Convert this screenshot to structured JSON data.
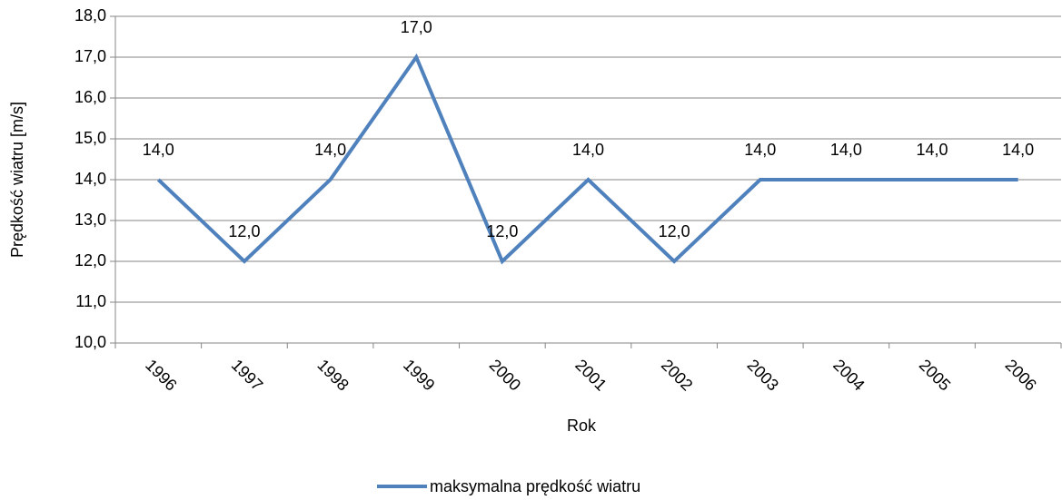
{
  "chart_data": {
    "type": "line",
    "x_label": "Rok",
    "y_label": "Prędkość wiatru [m/s]",
    "categories": [
      "1996",
      "1997",
      "1998",
      "1999",
      "2000",
      "2001",
      "2002",
      "2003",
      "2004",
      "2005",
      "2006"
    ],
    "series": [
      {
        "name": "maksymalna prędkość wiatru",
        "color": "#4f81bd",
        "values": [
          14,
          12,
          14,
          17,
          12,
          14,
          12,
          14,
          14,
          14,
          14
        ],
        "value_labels": [
          "14,0",
          "12,0",
          "14,0",
          "17,0",
          "12,0",
          "14,0",
          "12,0",
          "14,0",
          "14,0",
          "14,0",
          "14,0"
        ]
      }
    ],
    "ylim": [
      10,
      18
    ],
    "yticks": [
      {
        "value": 10,
        "label": "10,0"
      },
      {
        "value": 11,
        "label": "11,0"
      },
      {
        "value": 12,
        "label": "12,0"
      },
      {
        "value": 13,
        "label": "13,0"
      },
      {
        "value": 14,
        "label": "14,0"
      },
      {
        "value": 15,
        "label": "15,0"
      },
      {
        "value": 16,
        "label": "16,0"
      },
      {
        "value": 17,
        "label": "17,0"
      },
      {
        "value": 18,
        "label": "18,0"
      }
    ],
    "grid": true,
    "legend": "bottom"
  }
}
